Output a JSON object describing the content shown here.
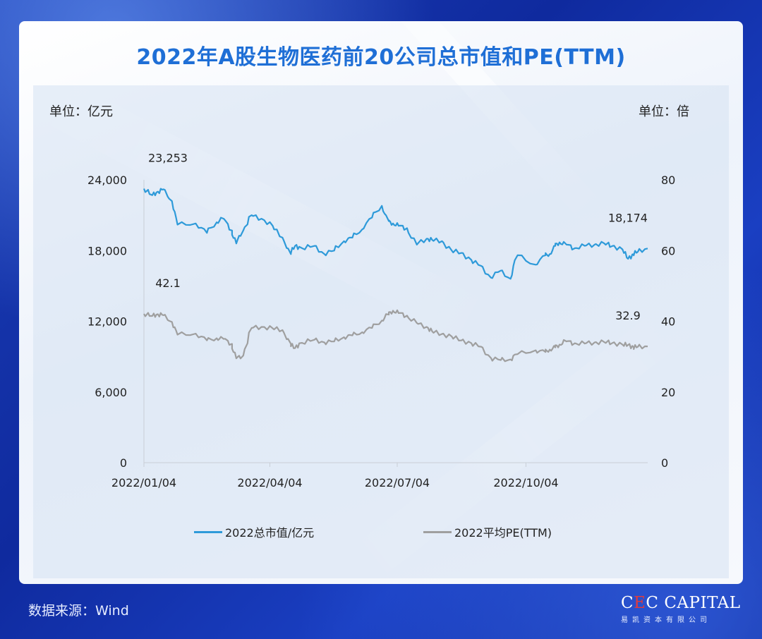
{
  "title": "2022年A股生物医药前20公司总市值和PE(TTM)",
  "left_unit": "单位：亿元",
  "right_unit": "单位：倍",
  "source": "数据来源：Wind",
  "logo": {
    "brand_prefix": "C",
    "brand_accent": "E",
    "brand_rest": "C CAPITAL",
    "sub": "易凯资本有限公司"
  },
  "colors": {
    "market_cap": "#2e9ad9",
    "pe": "#9f9f9f",
    "title": "#1f6fd6",
    "background": "#1533a8"
  },
  "chart_data": {
    "type": "line",
    "x_ticks": [
      "2022/01/04",
      "2022/04/04",
      "2022/07/04",
      "2022/10/04"
    ],
    "x_range": [
      "2022-01-04",
      "2022-12-30"
    ],
    "y_left": {
      "ticks": [
        "0",
        "6,000",
        "12,000",
        "18,000",
        "24,000"
      ],
      "ylim": [
        0,
        24000
      ]
    },
    "y_right": {
      "ticks": [
        "0",
        "20",
        "40",
        "60",
        "80"
      ],
      "ylim": [
        0,
        80
      ]
    },
    "legend": [
      "2022总市值/亿元",
      "2022平均PE(TTM)"
    ],
    "legend_position": "bottom",
    "series": [
      {
        "name": "2022总市值/亿元",
        "axis": "left",
        "color": "#2e9ad9",
        "x": [
          "2022-01-04",
          "2022-01-10",
          "2022-01-14",
          "2022-01-18",
          "2022-01-24",
          "2022-01-28",
          "2022-02-10",
          "2022-02-18",
          "2022-02-25",
          "2022-03-02",
          "2022-03-08",
          "2022-03-11",
          "2022-03-16",
          "2022-03-22",
          "2022-03-29",
          "2022-04-06",
          "2022-04-13",
          "2022-04-19",
          "2022-04-22",
          "2022-04-27",
          "2022-05-06",
          "2022-05-13",
          "2022-05-20",
          "2022-05-27",
          "2022-06-02",
          "2022-06-09",
          "2022-06-16",
          "2022-06-23",
          "2022-06-28",
          "2022-07-01",
          "2022-07-05",
          "2022-07-11",
          "2022-07-18",
          "2022-07-25",
          "2022-07-29",
          "2022-08-05",
          "2022-08-12",
          "2022-08-19",
          "2022-08-26",
          "2022-09-02",
          "2022-09-09",
          "2022-09-16",
          "2022-09-23",
          "2022-09-28",
          "2022-10-11",
          "2022-10-18",
          "2022-10-21",
          "2022-10-25",
          "2022-10-28",
          "2022-11-02",
          "2022-11-08",
          "2022-11-15",
          "2022-11-22",
          "2022-11-29",
          "2022-12-05",
          "2022-12-12",
          "2022-12-16",
          "2022-12-20",
          "2022-12-23",
          "2022-12-30"
        ],
        "values": [
          23253,
          22700,
          23000,
          23200,
          22200,
          20200,
          20300,
          19500,
          20400,
          20700,
          19700,
          18600,
          19700,
          21000,
          20700,
          20100,
          19100,
          17700,
          18400,
          18200,
          18400,
          17700,
          18000,
          18800,
          19100,
          19800,
          20800,
          21800,
          20500,
          20300,
          20100,
          19900,
          18500,
          19000,
          18900,
          18800,
          18000,
          17800,
          17200,
          16700,
          15700,
          16300,
          15600,
          17600,
          16800,
          17600,
          17700,
          18400,
          18700,
          18500,
          18200,
          18400,
          18500,
          18600,
          18400,
          18100,
          17300,
          17700,
          17900,
          18174
        ]
      },
      {
        "name": "2022平均PE(TTM)",
        "axis": "right",
        "color": "#9f9f9f",
        "x": [
          "2022-01-04",
          "2022-01-10",
          "2022-01-14",
          "2022-01-18",
          "2022-01-24",
          "2022-01-28",
          "2022-02-10",
          "2022-02-18",
          "2022-02-25",
          "2022-03-02",
          "2022-03-08",
          "2022-03-11",
          "2022-03-16",
          "2022-03-22",
          "2022-03-29",
          "2022-04-06",
          "2022-04-13",
          "2022-04-19",
          "2022-04-22",
          "2022-04-27",
          "2022-05-06",
          "2022-05-13",
          "2022-05-20",
          "2022-05-27",
          "2022-06-02",
          "2022-06-09",
          "2022-06-16",
          "2022-06-23",
          "2022-06-28",
          "2022-07-01",
          "2022-07-05",
          "2022-07-11",
          "2022-07-18",
          "2022-07-25",
          "2022-07-29",
          "2022-08-05",
          "2022-08-12",
          "2022-08-19",
          "2022-08-26",
          "2022-09-02",
          "2022-09-09",
          "2022-09-16",
          "2022-09-23",
          "2022-09-28",
          "2022-10-11",
          "2022-10-18",
          "2022-10-21",
          "2022-10-25",
          "2022-10-28",
          "2022-11-02",
          "2022-11-08",
          "2022-11-15",
          "2022-11-22",
          "2022-11-29",
          "2022-12-05",
          "2022-12-12",
          "2022-12-16",
          "2022-12-20",
          "2022-12-23",
          "2022-12-30"
        ],
        "values": [
          42.1,
          41.5,
          42.0,
          41.7,
          39.8,
          36.2,
          36.5,
          34.6,
          35.2,
          35.0,
          33.6,
          29.5,
          30.3,
          38.1,
          38.4,
          38.0,
          37.5,
          33.6,
          32.4,
          33.9,
          34.8,
          34.0,
          34.3,
          35.5,
          36.0,
          36.9,
          38.1,
          40.2,
          41.9,
          43.0,
          42.3,
          41.6,
          39.5,
          38.4,
          37.1,
          36.4,
          35.7,
          34.6,
          33.8,
          32.8,
          29.6,
          29.0,
          29.2,
          30.7,
          31.8,
          31.3,
          32.0,
          32.6,
          33.4,
          34.3,
          33.8,
          33.7,
          34.0,
          34.1,
          33.9,
          33.4,
          33.3,
          32.6,
          32.8,
          32.9
        ]
      }
    ],
    "annotations": [
      {
        "series": "2022总市值/亿元",
        "x": "2022-01-04",
        "y": 23253,
        "text": "23,253"
      },
      {
        "series": "2022总市值/亿元",
        "x": "2022-12-30",
        "y": 18174,
        "text": "18,174"
      },
      {
        "series": "2022平均PE(TTM)",
        "x": "2022-01-04",
        "y": 42.1,
        "text": "42.1"
      },
      {
        "series": "2022平均PE(TTM)",
        "x": "2022-12-30",
        "y": 32.9,
        "text": "32.9"
      }
    ]
  }
}
